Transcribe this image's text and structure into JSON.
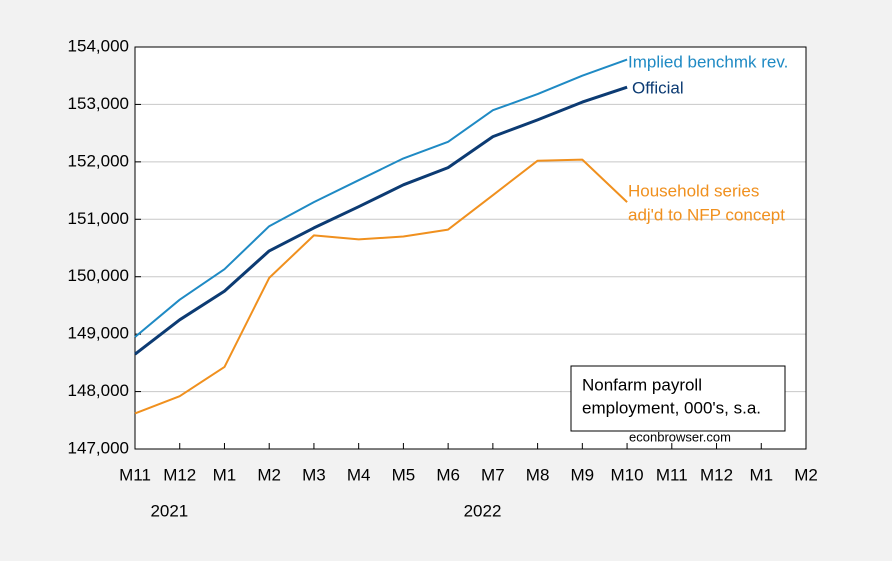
{
  "chart_data": {
    "type": "line",
    "categories": [
      "M11",
      "M12",
      "M1",
      "M2",
      "M3",
      "M4",
      "M5",
      "M6",
      "M7",
      "M8",
      "M9",
      "M10",
      "M11",
      "M12",
      "M1",
      "M2"
    ],
    "x_groups": [
      {
        "label": "2021",
        "count": 2
      },
      {
        "label": "2022",
        "count": 12
      }
    ],
    "series": [
      {
        "name": [
          "Implied benchmk rev."
        ],
        "color": "#1f8ac4",
        "values": [
          148950,
          149600,
          150130,
          150880,
          151300,
          151680,
          152060,
          152350,
          152900,
          153180,
          153500,
          153780,
          null,
          null,
          null,
          null
        ]
      },
      {
        "name": [
          "Official"
        ],
        "color": "#0c3b73",
        "values": [
          148650,
          149250,
          149750,
          150450,
          150850,
          151220,
          151600,
          151900,
          152440,
          152730,
          153040,
          153300,
          null,
          null,
          null,
          null
        ]
      },
      {
        "name": [
          "Household series",
          "adj'd to NFP concept"
        ],
        "color": "#f0901e",
        "values": [
          147620,
          147920,
          148430,
          149980,
          150720,
          150650,
          150700,
          150820,
          151420,
          152020,
          152040,
          151300,
          null,
          null,
          null,
          null
        ]
      }
    ],
    "ylim": [
      147000,
      154000
    ],
    "yticks": [
      {
        "value": 147000,
        "label": "147,000"
      },
      {
        "value": 148000,
        "label": "148,000"
      },
      {
        "value": 149000,
        "label": "149,000"
      },
      {
        "value": 150000,
        "label": "150,000"
      },
      {
        "value": 151000,
        "label": "151,000"
      },
      {
        "value": 152000,
        "label": "152,000"
      },
      {
        "value": 153000,
        "label": "153,000"
      },
      {
        "value": 154000,
        "label": "154,000"
      }
    ],
    "grid": true,
    "annotation": {
      "lines": [
        "Nonfarm payroll",
        "employment, 000's, s.a."
      ],
      "source": "econbrowser.com"
    }
  }
}
